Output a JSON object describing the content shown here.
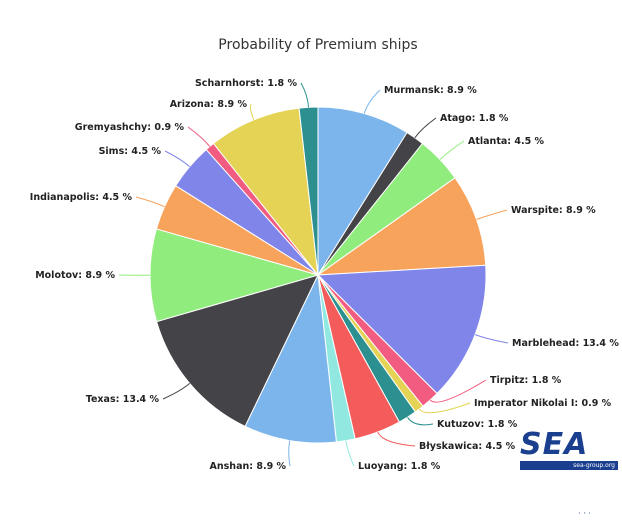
{
  "chart_data": {
    "type": "pie",
    "title": "Probability of Premium ships",
    "slices": [
      {
        "label": "Murmansk",
        "value": 8.9,
        "color": "#7cb5ec"
      },
      {
        "label": "Atago",
        "value": 1.8,
        "color": "#434348"
      },
      {
        "label": "Atlanta",
        "value": 4.5,
        "color": "#90ed7d"
      },
      {
        "label": "Warspite",
        "value": 8.9,
        "color": "#f7a35c"
      },
      {
        "label": "Marblehead",
        "value": 13.4,
        "color": "#8085e9"
      },
      {
        "label": "Tirpitz",
        "value": 1.8,
        "color": "#f15c80"
      },
      {
        "label": "Imperator Nikolai I",
        "value": 0.9,
        "color": "#e4d354"
      },
      {
        "label": "Kutuzov",
        "value": 1.8,
        "color": "#2b908f"
      },
      {
        "label": "Błyskawica",
        "value": 4.5,
        "color": "#f45b5b"
      },
      {
        "label": "Luoyang",
        "value": 1.8,
        "color": "#91e8e1"
      },
      {
        "label": "Anshan",
        "value": 8.9,
        "color": "#7cb5ec"
      },
      {
        "label": "Texas",
        "value": 13.4,
        "color": "#434348"
      },
      {
        "label": "Molotov",
        "value": 8.9,
        "color": "#90ed7d"
      },
      {
        "label": "Indianapolis",
        "value": 4.5,
        "color": "#f7a35c"
      },
      {
        "label": "Sims",
        "value": 4.5,
        "color": "#8085e9"
      },
      {
        "label": "Gremyashchy",
        "value": 0.9,
        "color": "#f15c80"
      },
      {
        "label": "Arizona",
        "value": 8.9,
        "color": "#e4d354"
      },
      {
        "label": "Scharnhorst",
        "value": 1.8,
        "color": "#2b908f"
      }
    ],
    "value_suffix": " %"
  },
  "logo": {
    "text": "SEA",
    "subtext": "sea-group.org"
  }
}
